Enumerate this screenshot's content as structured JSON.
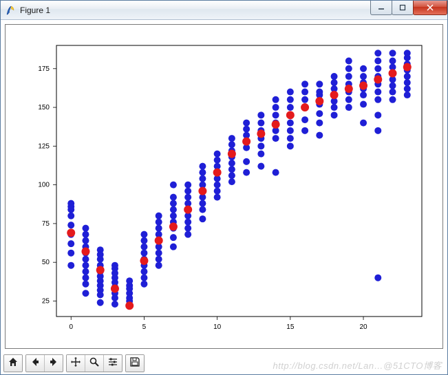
{
  "window": {
    "title": "Figure 1",
    "icon_name": "tk-feather-icon",
    "controls": {
      "minimize": "–",
      "maximize": "▢",
      "close": "✕"
    }
  },
  "chart": {
    "type": "scatter",
    "background_color": "#ffffff",
    "axes_border_color": "#000000",
    "tick_color": "#000000",
    "tick_fontsize": 10,
    "x": {
      "lim": [
        -1,
        24
      ],
      "ticks": [
        0,
        5,
        10,
        15,
        20
      ],
      "tick_labels": [
        "0",
        "5",
        "10",
        "15",
        "20"
      ]
    },
    "y": {
      "lim": [
        15,
        190
      ],
      "ticks": [
        25,
        50,
        75,
        100,
        125,
        150,
        175
      ],
      "tick_labels": [
        "25",
        "50",
        "75",
        "100",
        "125",
        "150",
        "175"
      ]
    },
    "series": [
      {
        "name": "blue",
        "color": "#1f1fd6",
        "marker": "circle",
        "marker_size": 5,
        "data": [
          [
            0,
            86
          ],
          [
            0,
            88
          ],
          [
            0,
            84
          ],
          [
            0,
            80
          ],
          [
            0,
            74
          ],
          [
            0,
            68
          ],
          [
            0,
            62
          ],
          [
            0,
            56
          ],
          [
            0,
            48
          ],
          [
            1,
            72
          ],
          [
            1,
            68
          ],
          [
            1,
            64
          ],
          [
            1,
            60
          ],
          [
            1,
            56
          ],
          [
            1,
            52
          ],
          [
            1,
            48
          ],
          [
            1,
            44
          ],
          [
            1,
            40
          ],
          [
            1,
            36
          ],
          [
            1,
            30
          ],
          [
            2,
            58
          ],
          [
            2,
            55
          ],
          [
            2,
            52
          ],
          [
            2,
            48
          ],
          [
            2,
            44
          ],
          [
            2,
            41
          ],
          [
            2,
            38
          ],
          [
            2,
            35
          ],
          [
            2,
            32
          ],
          [
            2,
            29
          ],
          [
            2,
            24
          ],
          [
            3,
            48
          ],
          [
            3,
            46
          ],
          [
            3,
            43
          ],
          [
            3,
            40
          ],
          [
            3,
            37
          ],
          [
            3,
            34
          ],
          [
            3,
            30
          ],
          [
            3,
            27
          ],
          [
            3,
            23
          ],
          [
            4,
            38
          ],
          [
            4,
            35
          ],
          [
            4,
            33
          ],
          [
            4,
            30
          ],
          [
            4,
            27
          ],
          [
            4,
            25
          ],
          [
            5,
            68
          ],
          [
            5,
            64
          ],
          [
            5,
            60
          ],
          [
            5,
            56
          ],
          [
            5,
            52
          ],
          [
            5,
            48
          ],
          [
            5,
            44
          ],
          [
            5,
            40
          ],
          [
            5,
            36
          ],
          [
            6,
            80
          ],
          [
            6,
            76
          ],
          [
            6,
            72
          ],
          [
            6,
            68
          ],
          [
            6,
            64
          ],
          [
            6,
            60
          ],
          [
            6,
            56
          ],
          [
            6,
            52
          ],
          [
            6,
            48
          ],
          [
            7,
            100
          ],
          [
            7,
            92
          ],
          [
            7,
            88
          ],
          [
            7,
            84
          ],
          [
            7,
            80
          ],
          [
            7,
            76
          ],
          [
            7,
            72
          ],
          [
            7,
            66
          ],
          [
            7,
            60
          ],
          [
            8,
            100
          ],
          [
            8,
            96
          ],
          [
            8,
            92
          ],
          [
            8,
            88
          ],
          [
            8,
            84
          ],
          [
            8,
            80
          ],
          [
            8,
            76
          ],
          [
            8,
            72
          ],
          [
            8,
            68
          ],
          [
            9,
            112
          ],
          [
            9,
            108
          ],
          [
            9,
            104
          ],
          [
            9,
            100
          ],
          [
            9,
            96
          ],
          [
            9,
            92
          ],
          [
            9,
            88
          ],
          [
            9,
            84
          ],
          [
            9,
            78
          ],
          [
            10,
            120
          ],
          [
            10,
            116
          ],
          [
            10,
            112
          ],
          [
            10,
            108
          ],
          [
            10,
            104
          ],
          [
            10,
            100
          ],
          [
            10,
            96
          ],
          [
            10,
            92
          ],
          [
            11,
            130
          ],
          [
            11,
            126
          ],
          [
            11,
            122
          ],
          [
            11,
            118
          ],
          [
            11,
            114
          ],
          [
            11,
            110
          ],
          [
            11,
            106
          ],
          [
            11,
            102
          ],
          [
            12,
            140
          ],
          [
            12,
            136
          ],
          [
            12,
            132
          ],
          [
            12,
            128
          ],
          [
            12,
            124
          ],
          [
            12,
            115
          ],
          [
            12,
            108
          ],
          [
            13,
            145
          ],
          [
            13,
            140
          ],
          [
            13,
            135
          ],
          [
            13,
            130
          ],
          [
            13,
            125
          ],
          [
            13,
            120
          ],
          [
            13,
            112
          ],
          [
            14,
            155
          ],
          [
            14,
            150
          ],
          [
            14,
            145
          ],
          [
            14,
            140
          ],
          [
            14,
            135
          ],
          [
            14,
            130
          ],
          [
            14,
            108
          ],
          [
            15,
            160
          ],
          [
            15,
            155
          ],
          [
            15,
            150
          ],
          [
            15,
            145
          ],
          [
            15,
            140
          ],
          [
            15,
            135
          ],
          [
            15,
            130
          ],
          [
            15,
            125
          ],
          [
            16,
            165
          ],
          [
            16,
            160
          ],
          [
            16,
            155
          ],
          [
            16,
            150
          ],
          [
            16,
            142
          ],
          [
            16,
            135
          ],
          [
            17,
            165
          ],
          [
            17,
            160
          ],
          [
            17,
            158
          ],
          [
            17,
            152
          ],
          [
            17,
            146
          ],
          [
            17,
            140
          ],
          [
            17,
            132
          ],
          [
            18,
            170
          ],
          [
            18,
            166
          ],
          [
            18,
            162
          ],
          [
            18,
            158
          ],
          [
            18,
            154
          ],
          [
            18,
            150
          ],
          [
            18,
            145
          ],
          [
            19,
            180
          ],
          [
            19,
            175
          ],
          [
            19,
            170
          ],
          [
            19,
            165
          ],
          [
            19,
            160
          ],
          [
            19,
            155
          ],
          [
            19,
            150
          ],
          [
            20,
            175
          ],
          [
            20,
            170
          ],
          [
            20,
            166
          ],
          [
            20,
            162
          ],
          [
            20,
            158
          ],
          [
            20,
            152
          ],
          [
            20,
            140
          ],
          [
            21,
            185
          ],
          [
            21,
            180
          ],
          [
            21,
            175
          ],
          [
            21,
            170
          ],
          [
            21,
            165
          ],
          [
            21,
            160
          ],
          [
            21,
            155
          ],
          [
            21,
            145
          ],
          [
            21,
            135
          ],
          [
            21,
            40
          ],
          [
            22,
            185
          ],
          [
            22,
            180
          ],
          [
            22,
            176
          ],
          [
            22,
            172
          ],
          [
            22,
            168
          ],
          [
            22,
            164
          ],
          [
            22,
            160
          ],
          [
            22,
            155
          ],
          [
            23,
            185
          ],
          [
            23,
            182
          ],
          [
            23,
            178
          ],
          [
            23,
            174
          ],
          [
            23,
            170
          ],
          [
            23,
            166
          ],
          [
            23,
            162
          ],
          [
            23,
            158
          ]
        ]
      },
      {
        "name": "red",
        "color": "#e41a1c",
        "marker": "circle",
        "marker_size": 6,
        "data": [
          [
            0,
            69
          ],
          [
            1,
            57
          ],
          [
            2,
            45
          ],
          [
            3,
            33
          ],
          [
            4,
            22
          ],
          [
            5,
            51
          ],
          [
            6,
            64
          ],
          [
            7,
            73
          ],
          [
            8,
            84
          ],
          [
            9,
            96
          ],
          [
            10,
            108
          ],
          [
            11,
            120
          ],
          [
            12,
            128
          ],
          [
            13,
            133
          ],
          [
            14,
            139
          ],
          [
            15,
            145
          ],
          [
            16,
            150
          ],
          [
            17,
            154
          ],
          [
            18,
            158
          ],
          [
            19,
            162
          ],
          [
            20,
            164
          ],
          [
            21,
            168
          ],
          [
            22,
            172
          ],
          [
            23,
            176
          ]
        ]
      }
    ]
  },
  "toolbar": {
    "buttons": [
      {
        "name": "home",
        "icon": "home-icon"
      },
      {
        "name": "back",
        "icon": "arrow-left-icon"
      },
      {
        "name": "forward",
        "icon": "arrow-right-icon"
      },
      {
        "name": "pan",
        "icon": "move-icon"
      },
      {
        "name": "zoom",
        "icon": "magnifier-icon"
      },
      {
        "name": "configure",
        "icon": "sliders-icon"
      },
      {
        "name": "save",
        "icon": "floppy-icon"
      }
    ]
  },
  "watermark": "http://blog.csdn.net/Lan…@51CTO博客"
}
